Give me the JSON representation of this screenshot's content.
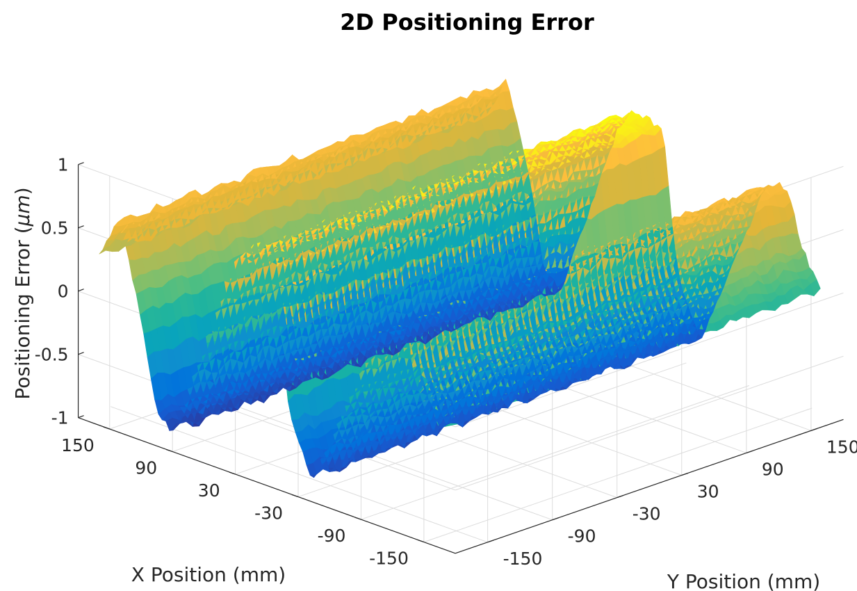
{
  "chart_data": {
    "type": "surface",
    "title": "2D Positioning Error",
    "xlabel": "X Position (mm)",
    "ylabel": "Y Position (mm)",
    "zlabel": "Positioning Error (",
    "zlabel_unit": "μm",
    "zlabel_close": ")",
    "xlim": [
      -180,
      180
    ],
    "ylim": [
      -180,
      180
    ],
    "zlim": [
      -1,
      1
    ],
    "x_ticks": [
      150,
      90,
      30,
      -30,
      -90,
      -150
    ],
    "y_ticks": [
      -150,
      -90,
      -30,
      30,
      90,
      150
    ],
    "z_ticks": [
      1,
      0.5,
      0,
      -0.5,
      -1
    ],
    "x_tick_labels": [
      "150",
      "90",
      "30",
      "-30",
      "-90",
      "-150"
    ],
    "y_tick_labels": [
      "-150",
      "-90",
      "-30",
      "30",
      "90",
      "150"
    ],
    "z_tick_labels": [
      "1",
      "0.5",
      "0",
      "-0.5",
      "-1"
    ],
    "grid": true,
    "colormap": "parula",
    "sawtooth_profile_along_x": {
      "x": [
        160,
        141,
        122,
        106,
        90,
        35,
        25,
        18,
        8,
        -8,
        -16,
        -22,
        -43,
        -105,
        -118,
        -128,
        -140,
        -158
      ],
      "z": [
        0.35,
        0.68,
        0.05,
        -0.7,
        -0.85,
        0.62,
        0.74,
        0.8,
        0.77,
        0.72,
        0.05,
        -0.38,
        -0.84,
        0.55,
        0.64,
        0.58,
        0.2,
        -0.1
      ]
    },
    "trend_along_y": {
      "y": [
        -180,
        180
      ],
      "z_offset": [
        0.0,
        0.05
      ]
    }
  }
}
